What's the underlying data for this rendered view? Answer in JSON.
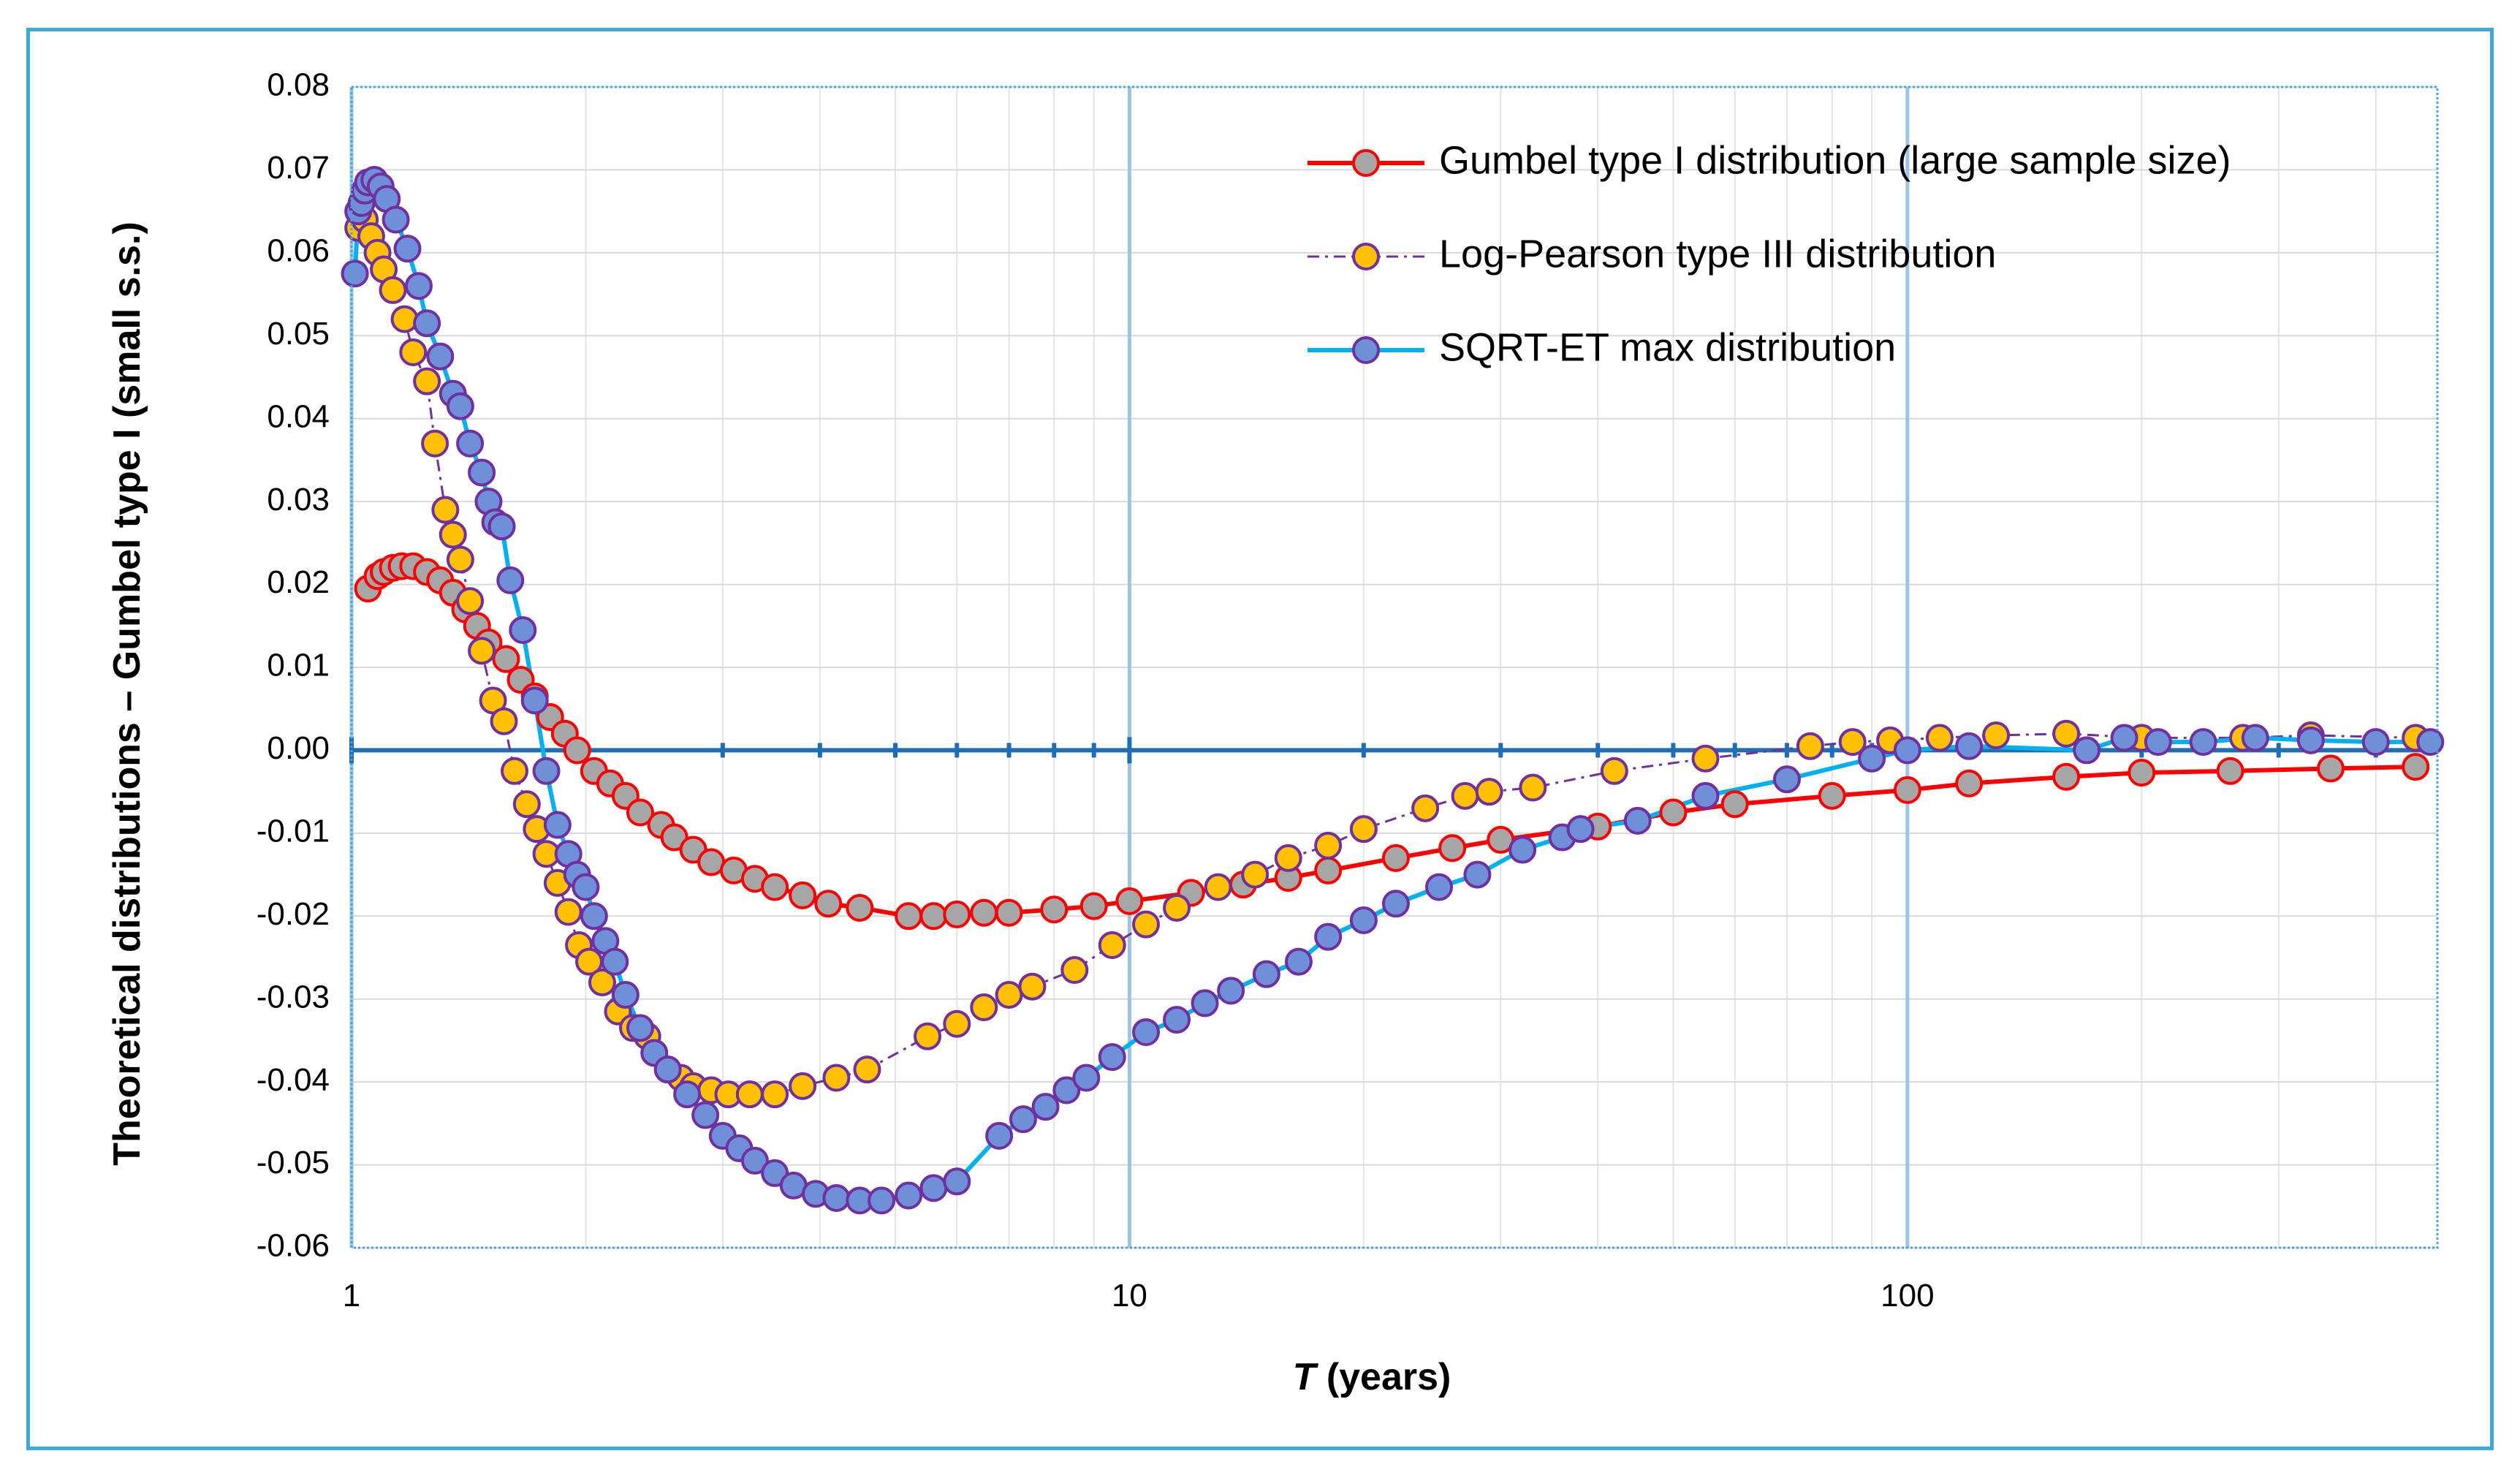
{
  "chart_data": {
    "type": "scatter",
    "title": "",
    "xlabel_italic": "T",
    "xlabel_rest": " (years)",
    "ylabel": "Theoretical distributions – Gumbel type I (small s.s.)",
    "xscale": "log",
    "xlim": [
      1,
      480
    ],
    "ylim": [
      -0.06,
      0.08
    ],
    "x_ticks": [
      1,
      10,
      100
    ],
    "x_tick_labels": [
      "1",
      "10",
      "100"
    ],
    "y_ticks": [
      0.08,
      0.07,
      0.06,
      0.05,
      0.04,
      0.03,
      0.02,
      0.01,
      0.0,
      -0.01,
      -0.02,
      -0.03,
      -0.04,
      -0.05,
      -0.06
    ],
    "y_tick_labels": [
      "0.08",
      "0.07",
      "0.06",
      "0.05",
      "0.04",
      "0.03",
      "0.02",
      "0.01",
      "0.00",
      "-0.01",
      "-0.02",
      "-0.03",
      "-0.04",
      "-0.05",
      "-0.06"
    ],
    "grid": true,
    "legend_position": "top-right",
    "series": [
      {
        "name": "Gumbel type I distribution (large sample size)",
        "line_color": "#ff0000",
        "marker_fill": "#a6a6a6",
        "marker_stroke": "#ff0000",
        "line_style": "solid",
        "points": [
          [
            1.05,
            0.0195
          ],
          [
            1.08,
            0.021
          ],
          [
            1.1,
            0.0215
          ],
          [
            1.13,
            0.022
          ],
          [
            1.16,
            0.0222
          ],
          [
            1.2,
            0.0222
          ],
          [
            1.25,
            0.0215
          ],
          [
            1.3,
            0.0205
          ],
          [
            1.35,
            0.019
          ],
          [
            1.4,
            0.017
          ],
          [
            1.45,
            0.015
          ],
          [
            1.5,
            0.013
          ],
          [
            1.58,
            0.011
          ],
          [
            1.65,
            0.0085
          ],
          [
            1.72,
            0.0065
          ],
          [
            1.8,
            0.004
          ],
          [
            1.88,
            0.002
          ],
          [
            1.95,
            0.0
          ],
          [
            2.05,
            -0.0025
          ],
          [
            2.15,
            -0.004
          ],
          [
            2.25,
            -0.0055
          ],
          [
            2.35,
            -0.0075
          ],
          [
            2.5,
            -0.009
          ],
          [
            2.6,
            -0.0105
          ],
          [
            2.75,
            -0.012
          ],
          [
            2.9,
            -0.0135
          ],
          [
            3.1,
            -0.0145
          ],
          [
            3.3,
            -0.0155
          ],
          [
            3.5,
            -0.0165
          ],
          [
            3.8,
            -0.0175
          ],
          [
            4.1,
            -0.0185
          ],
          [
            4.5,
            -0.019
          ],
          [
            5.2,
            -0.02
          ],
          [
            5.6,
            -0.02
          ],
          [
            6.0,
            -0.0198
          ],
          [
            6.5,
            -0.0196
          ],
          [
            7.0,
            -0.0196
          ],
          [
            8.0,
            -0.0192
          ],
          [
            9.0,
            -0.0188
          ],
          [
            10.0,
            -0.0182
          ],
          [
            12.0,
            -0.0172
          ],
          [
            14.0,
            -0.0162
          ],
          [
            16.0,
            -0.0154
          ],
          [
            18.0,
            -0.0145
          ],
          [
            22.0,
            -0.013
          ],
          [
            26.0,
            -0.0118
          ],
          [
            30.0,
            -0.0108
          ],
          [
            40.0,
            -0.0092
          ],
          [
            50.0,
            -0.0075
          ],
          [
            60.0,
            -0.0065
          ],
          [
            80.0,
            -0.0055
          ],
          [
            100.0,
            -0.0048
          ],
          [
            120.0,
            -0.004
          ],
          [
            160.0,
            -0.0032
          ],
          [
            200.0,
            -0.0027
          ],
          [
            260.0,
            -0.0025
          ],
          [
            350.0,
            -0.0022
          ],
          [
            450.0,
            -0.002
          ]
        ]
      },
      {
        "name": "Log-Pearson type III distribution",
        "line_color": "#7030a0",
        "marker_fill": "#ffc000",
        "marker_stroke": "#7030a0",
        "line_style": "dashdot",
        "points": [
          [
            1.02,
            0.063
          ],
          [
            1.04,
            0.064
          ],
          [
            1.06,
            0.062
          ],
          [
            1.08,
            0.06
          ],
          [
            1.1,
            0.058
          ],
          [
            1.13,
            0.0555
          ],
          [
            1.17,
            0.052
          ],
          [
            1.2,
            0.048
          ],
          [
            1.25,
            0.0445
          ],
          [
            1.28,
            0.037
          ],
          [
            1.32,
            0.029
          ],
          [
            1.35,
            0.026
          ],
          [
            1.38,
            0.023
          ],
          [
            1.42,
            0.018
          ],
          [
            1.47,
            0.012
          ],
          [
            1.52,
            0.006
          ],
          [
            1.57,
            0.0035
          ],
          [
            1.62,
            -0.0025
          ],
          [
            1.68,
            -0.0065
          ],
          [
            1.73,
            -0.0095
          ],
          [
            1.78,
            -0.0125
          ],
          [
            1.84,
            -0.016
          ],
          [
            1.9,
            -0.0195
          ],
          [
            1.96,
            -0.0235
          ],
          [
            2.02,
            -0.0255
          ],
          [
            2.1,
            -0.028
          ],
          [
            2.2,
            -0.0315
          ],
          [
            2.3,
            -0.0335
          ],
          [
            2.4,
            -0.0345
          ],
          [
            2.55,
            -0.0385
          ],
          [
            2.65,
            -0.0395
          ],
          [
            2.75,
            -0.0405
          ],
          [
            2.9,
            -0.041
          ],
          [
            3.05,
            -0.0415
          ],
          [
            3.25,
            -0.0415
          ],
          [
            3.5,
            -0.0415
          ],
          [
            3.8,
            -0.0405
          ],
          [
            4.2,
            -0.0395
          ],
          [
            4.6,
            -0.0385
          ],
          [
            5.5,
            -0.0345
          ],
          [
            6.0,
            -0.033
          ],
          [
            6.5,
            -0.031
          ],
          [
            7.0,
            -0.0295
          ],
          [
            7.5,
            -0.0285
          ],
          [
            8.5,
            -0.0265
          ],
          [
            9.5,
            -0.0235
          ],
          [
            10.5,
            -0.021
          ],
          [
            11.5,
            -0.019
          ],
          [
            13.0,
            -0.0165
          ],
          [
            14.5,
            -0.015
          ],
          [
            16.0,
            -0.013
          ],
          [
            18.0,
            -0.0115
          ],
          [
            20.0,
            -0.0095
          ],
          [
            24.0,
            -0.007
          ],
          [
            27.0,
            -0.0055
          ],
          [
            29.0,
            -0.005
          ],
          [
            33.0,
            -0.0045
          ],
          [
            42.0,
            -0.0025
          ],
          [
            55.0,
            -0.001
          ],
          [
            75.0,
            0.0005
          ],
          [
            85.0,
            0.001
          ],
          [
            95.0,
            0.0012
          ],
          [
            110.0,
            0.0015
          ],
          [
            130.0,
            0.0018
          ],
          [
            160.0,
            0.002
          ],
          [
            200.0,
            0.0015
          ],
          [
            270.0,
            0.0015
          ],
          [
            330.0,
            0.0018
          ],
          [
            450.0,
            0.0015
          ]
        ]
      },
      {
        "name": "SQRT-ET max distribution",
        "line_color": "#00b0f0",
        "marker_fill": "#6f90d8",
        "marker_stroke": "#7030a0",
        "line_style": "solid",
        "points": [
          [
            1.01,
            0.0575
          ],
          [
            1.02,
            0.065
          ],
          [
            1.03,
            0.066
          ],
          [
            1.04,
            0.0675
          ],
          [
            1.05,
            0.0685
          ],
          [
            1.07,
            0.0688
          ],
          [
            1.09,
            0.068
          ],
          [
            1.11,
            0.0665
          ],
          [
            1.14,
            0.064
          ],
          [
            1.18,
            0.0605
          ],
          [
            1.22,
            0.056
          ],
          [
            1.25,
            0.0515
          ],
          [
            1.3,
            0.0475
          ],
          [
            1.35,
            0.043
          ],
          [
            1.38,
            0.0415
          ],
          [
            1.42,
            0.037
          ],
          [
            1.47,
            0.0335
          ],
          [
            1.5,
            0.03
          ],
          [
            1.53,
            0.0275
          ],
          [
            1.56,
            0.027
          ],
          [
            1.6,
            0.0205
          ],
          [
            1.66,
            0.0145
          ],
          [
            1.72,
            0.006
          ],
          [
            1.78,
            -0.0025
          ],
          [
            1.84,
            -0.009
          ],
          [
            1.9,
            -0.0125
          ],
          [
            1.95,
            -0.015
          ],
          [
            2.0,
            -0.0165
          ],
          [
            2.05,
            -0.02
          ],
          [
            2.12,
            -0.023
          ],
          [
            2.18,
            -0.0255
          ],
          [
            2.25,
            -0.0295
          ],
          [
            2.35,
            -0.0335
          ],
          [
            2.45,
            -0.0365
          ],
          [
            2.55,
            -0.0385
          ],
          [
            2.7,
            -0.0415
          ],
          [
            2.85,
            -0.044
          ],
          [
            3.0,
            -0.0465
          ],
          [
            3.15,
            -0.048
          ],
          [
            3.3,
            -0.0495
          ],
          [
            3.5,
            -0.051
          ],
          [
            3.7,
            -0.0525
          ],
          [
            3.95,
            -0.0535
          ],
          [
            4.2,
            -0.054
          ],
          [
            4.5,
            -0.0543
          ],
          [
            4.8,
            -0.0543
          ],
          [
            5.2,
            -0.0537
          ],
          [
            5.6,
            -0.0528
          ],
          [
            6.0,
            -0.052
          ],
          [
            6.8,
            -0.0465
          ],
          [
            7.3,
            -0.0445
          ],
          [
            7.8,
            -0.043
          ],
          [
            8.3,
            -0.041
          ],
          [
            8.8,
            -0.0395
          ],
          [
            9.5,
            -0.037
          ],
          [
            10.5,
            -0.034
          ],
          [
            11.5,
            -0.0325
          ],
          [
            12.5,
            -0.0305
          ],
          [
            13.5,
            -0.029
          ],
          [
            15.0,
            -0.027
          ],
          [
            16.5,
            -0.0255
          ],
          [
            18.0,
            -0.0225
          ],
          [
            20.0,
            -0.0205
          ],
          [
            22.0,
            -0.0185
          ],
          [
            25.0,
            -0.0165
          ],
          [
            28.0,
            -0.015
          ],
          [
            32.0,
            -0.012
          ],
          [
            36.0,
            -0.0105
          ],
          [
            38.0,
            -0.0095
          ],
          [
            45.0,
            -0.0085
          ],
          [
            55.0,
            -0.0055
          ],
          [
            70.0,
            -0.0035
          ],
          [
            90.0,
            -0.001
          ],
          [
            100.0,
            0.0
          ],
          [
            120.0,
            0.0005
          ],
          [
            170.0,
            0.0
          ],
          [
            190.0,
            0.0015
          ],
          [
            210.0,
            0.001
          ],
          [
            240.0,
            0.001
          ],
          [
            280.0,
            0.0015
          ],
          [
            330.0,
            0.0012
          ],
          [
            400.0,
            0.001
          ],
          [
            470.0,
            0.001
          ]
        ]
      }
    ]
  }
}
